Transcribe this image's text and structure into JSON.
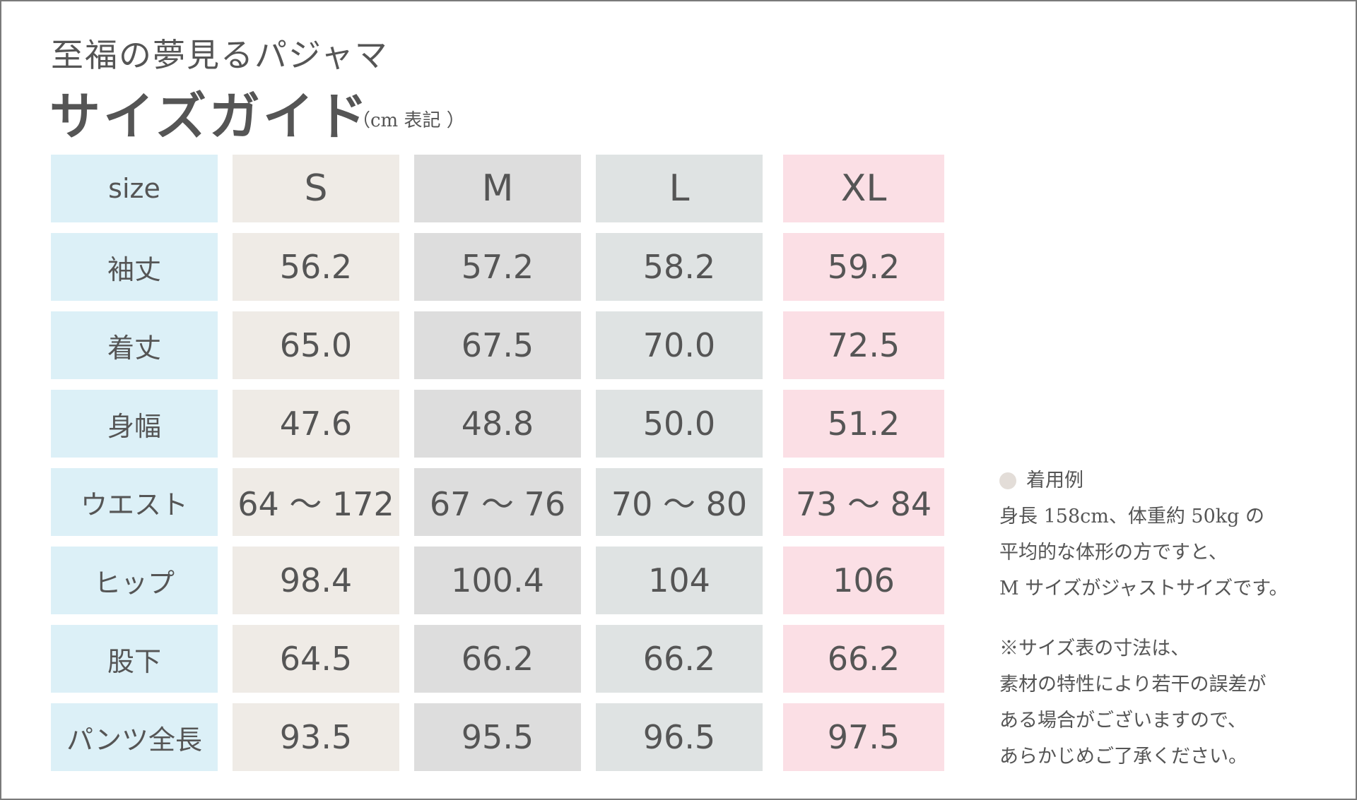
{
  "header": {
    "subtitle": "至福の夢見るパジャマ",
    "title": "サイズガイド",
    "unit_note": "（cm 表記 ）"
  },
  "colors": {
    "label_column": "#dcf0f7",
    "size_s": "#efebe6",
    "size_m": "#dddddd",
    "size_l": "#dfe3e3",
    "size_xl": "#fbdfe5",
    "text": "#555555"
  },
  "table": {
    "header": [
      "size",
      "S",
      "M",
      "L",
      "XL"
    ],
    "rows": [
      [
        "袖丈",
        "56.2",
        "57.2",
        "58.2",
        "59.2"
      ],
      [
        "着丈",
        "65.0",
        "67.5",
        "70.0",
        "72.5"
      ],
      [
        "身幅",
        "47.6",
        "48.8",
        "50.0",
        "51.2"
      ],
      [
        "ウエスト",
        "64 〜 172",
        "67 〜 76",
        "70 〜 80",
        "73 〜 84"
      ],
      [
        "ヒップ",
        "98.4",
        "100.4",
        "104",
        "106"
      ],
      [
        "股下",
        "64.5",
        "66.2",
        "66.2",
        "66.2"
      ],
      [
        "パンツ全長",
        "93.5",
        "95.5",
        "96.5",
        "97.5"
      ]
    ]
  },
  "notes": {
    "example_title": "着用例",
    "example_lines": [
      "身長 158cm、体重約 50kg の",
      "平均的な体形の方ですと、",
      "M サイズがジャストサイズです。"
    ],
    "disclaimer_lines": [
      "※サイズ表の寸法は、",
      "素材の特性により若干の誤差が",
      "ある場合がございますので、",
      "あらかじめご了承ください。"
    ]
  }
}
